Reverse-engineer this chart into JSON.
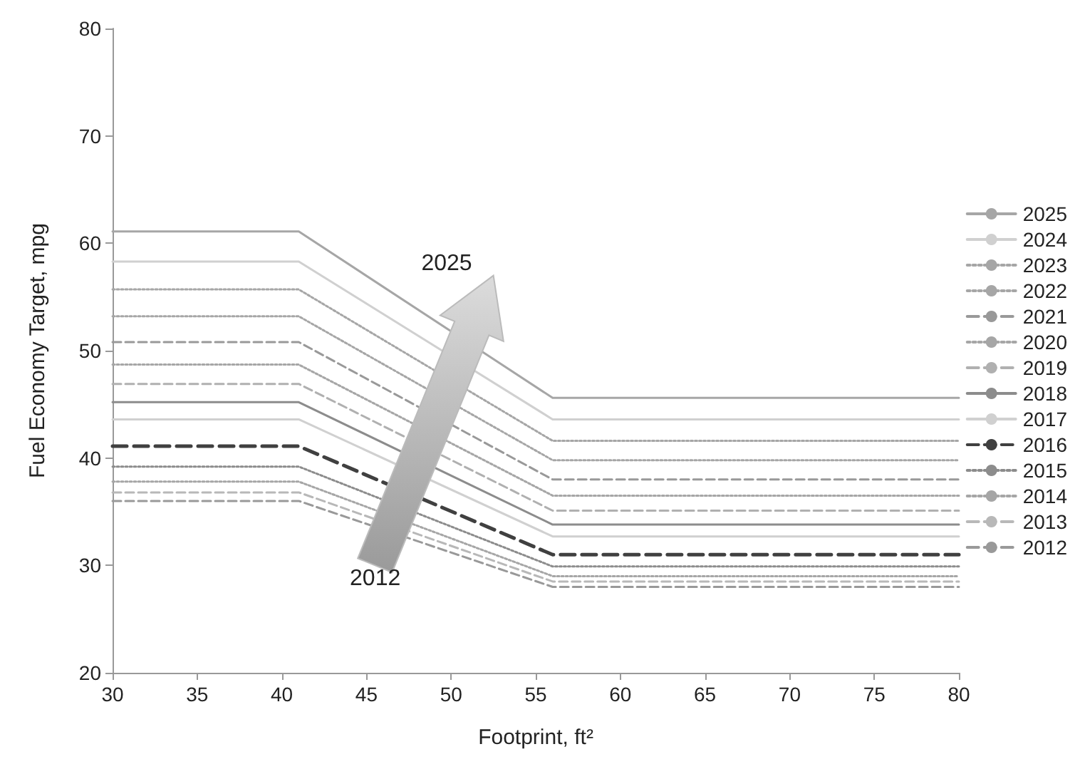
{
  "chart_data": {
    "type": "line",
    "xlabel": "Footprint, ft²",
    "ylabel": "Fuel Economy Target, mpg",
    "x": [
      30,
      41,
      56,
      80
    ],
    "xlim": [
      30,
      80
    ],
    "xticks": [
      30,
      35,
      40,
      45,
      50,
      55,
      60,
      65,
      70,
      75,
      80
    ],
    "ylim": [
      20,
      80
    ],
    "yticks": [
      20,
      30,
      40,
      50,
      60,
      70,
      80
    ],
    "grid": false,
    "legend": "right",
    "marker": "none",
    "annotations": [
      "2025",
      "2012"
    ],
    "series": [
      {
        "name": "2025",
        "color": "#a6a6a6",
        "line_style": "solid",
        "values": [
          61.1,
          61.1,
          45.6,
          45.6
        ]
      },
      {
        "name": "2024",
        "color": "#d0d0d0",
        "line_style": "solid",
        "values": [
          58.3,
          58.3,
          43.6,
          43.6
        ]
      },
      {
        "name": "2023",
        "color": "#a6a6a6",
        "line_style": "dotted",
        "values": [
          55.7,
          55.7,
          41.6,
          41.6
        ]
      },
      {
        "name": "2022",
        "color": "#a6a6a6",
        "line_style": "dotted",
        "values": [
          53.2,
          53.2,
          39.8,
          39.8
        ]
      },
      {
        "name": "2021",
        "color": "#999999",
        "line_style": "dashed",
        "values": [
          50.8,
          50.8,
          38.0,
          38.0
        ]
      },
      {
        "name": "2020",
        "color": "#a6a6a6",
        "line_style": "dotted",
        "values": [
          48.7,
          48.7,
          36.5,
          36.5
        ]
      },
      {
        "name": "2019",
        "color": "#b0b0b0",
        "line_style": "dashed",
        "values": [
          46.9,
          46.9,
          35.1,
          35.1
        ]
      },
      {
        "name": "2018",
        "color": "#8c8c8c",
        "line_style": "solid",
        "values": [
          45.2,
          45.2,
          33.8,
          33.8
        ]
      },
      {
        "name": "2017",
        "color": "#d0d0d0",
        "line_style": "solid",
        "values": [
          43.6,
          43.6,
          32.7,
          32.7
        ]
      },
      {
        "name": "2016",
        "color": "#404040",
        "line_style": "dashed",
        "values": [
          41.1,
          41.1,
          31.0,
          31.0
        ]
      },
      {
        "name": "2015",
        "color": "#8c8c8c",
        "line_style": "dotted",
        "values": [
          39.2,
          39.2,
          29.9,
          29.9
        ]
      },
      {
        "name": "2014",
        "color": "#a6a6a6",
        "line_style": "dotted",
        "values": [
          37.8,
          37.8,
          29.0,
          29.0
        ]
      },
      {
        "name": "2013",
        "color": "#b8b8b8",
        "line_style": "dashed",
        "values": [
          36.8,
          36.8,
          28.5,
          28.5
        ]
      },
      {
        "name": "2012",
        "color": "#999999",
        "line_style": "dashed",
        "values": [
          36.0,
          36.0,
          28.0,
          28.0
        ]
      }
    ]
  }
}
